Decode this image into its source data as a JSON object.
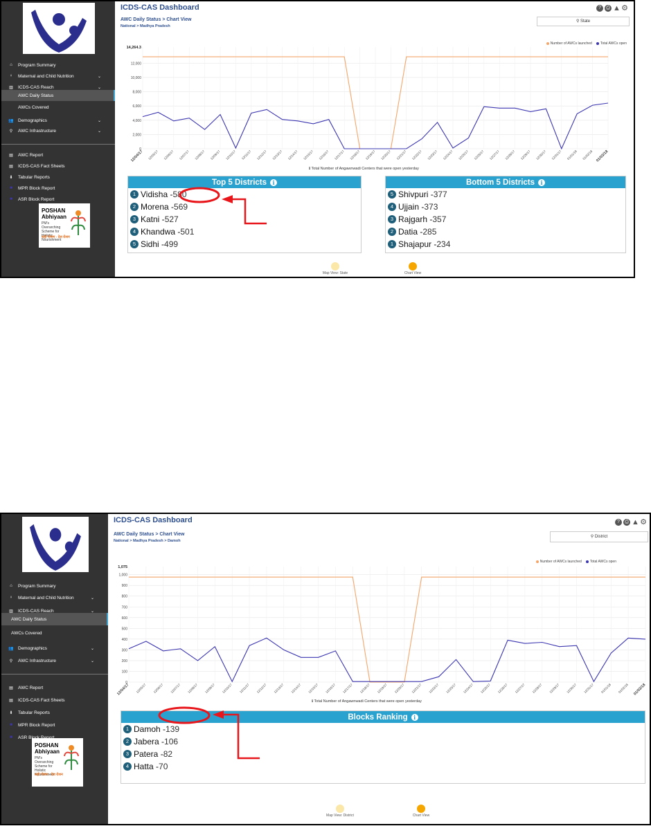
{
  "screenshot_1": {
    "sidebar": {
      "items": [
        {
          "icon": "home-icon",
          "label": "Program Summary"
        },
        {
          "icon": "mother-child-icon",
          "label": "Maternal and Child Nutrition",
          "chevron": true
        },
        {
          "icon": "bar-chart-icon",
          "label": "ICDS-CAS Reach",
          "chevron": true
        },
        {
          "label": "AWC Daily Status",
          "active": true,
          "sub": true
        },
        {
          "label": "AWCs Covered",
          "sub": true
        },
        {
          "icon": "users-icon",
          "label": "Demographics",
          "chevron": true
        },
        {
          "icon": "map-pin-icon",
          "label": "AWC Infrastructure",
          "chevron": true
        }
      ],
      "reports": [
        {
          "icon": "file-icon",
          "label": "AWC Report"
        },
        {
          "icon": "file-icon",
          "label": "ICDS-CAS Fact Sheets"
        },
        {
          "icon": "download-icon",
          "label": "Tabular Reports"
        },
        {
          "icon": "square-icon",
          "label": "MPR Block Report"
        },
        {
          "icon": "square-icon",
          "label": "ASR Block Report"
        }
      ],
      "poshan": {
        "line1": "POSHAN",
        "line2": "Abhiyaan",
        "tagline": "PM's Overarching Scheme for Holistic Nourishment",
        "hindi": "सही पोषण - देश रोशन"
      }
    },
    "header": {
      "title": "ICDS-CAS Dashboard",
      "subtitle_part1": "AWC Daily Status",
      "subtitle_sep": ">",
      "subtitle_part2": "Chart View",
      "breadcrumb": "National > Madhya Pradesh",
      "location_button": "State"
    },
    "chart_legend": {
      "launched": "Number of AWCs launched",
      "open": "Total AWCs open",
      "launched_color": "#f4a56a",
      "open_color": "#3b35b0"
    },
    "chart_note": "Total Number of Angawnwadi Centers that were open yesterday",
    "chart_data": {
      "type": "line",
      "y_top_label": "14,264.3",
      "yticks": [
        "2,000",
        "4,000",
        "6,000",
        "8,000",
        "10,000",
        "12,000"
      ],
      "ylim": [
        0,
        14264.3
      ],
      "x": [
        "12/04/17",
        "12/05/17",
        "12/06/17",
        "12/07/17",
        "12/08/17",
        "12/09/17",
        "12/10/17",
        "12/11/17",
        "12/12/17",
        "12/13/17",
        "12/14/17",
        "12/15/17",
        "12/16/17",
        "12/17/17",
        "12/18/17",
        "12/19/17",
        "12/20/17",
        "12/21/17",
        "12/22/17",
        "12/23/17",
        "12/24/17",
        "12/25/17",
        "12/26/17",
        "12/27/17",
        "12/28/17",
        "12/29/17",
        "12/30/17",
        "12/31/17",
        "01/01/18",
        "01/02/18",
        "01/03/18"
      ],
      "series": [
        {
          "name": "Number of AWCs launched",
          "values": [
            12900,
            12900,
            12900,
            12900,
            12900,
            12900,
            12900,
            12900,
            12900,
            12900,
            12900,
            12900,
            12900,
            12900,
            0,
            0,
            0,
            12900,
            12900,
            12900,
            12900,
            12900,
            12900,
            12900,
            12900,
            12900,
            12900,
            12900,
            12900,
            12900,
            12900
          ]
        },
        {
          "name": "Total AWCs open",
          "values": [
            4500,
            5100,
            3900,
            4300,
            2700,
            4800,
            100,
            5000,
            5500,
            4100,
            3900,
            3500,
            4100,
            0,
            0,
            0,
            0,
            0,
            1400,
            3700,
            100,
            1500,
            5900,
            5700,
            5700,
            5200,
            5600,
            0,
            4900,
            6100,
            6400
          ]
        }
      ]
    },
    "top_panel": {
      "title": "Top 5 Districts",
      "rows": [
        {
          "rank": "1",
          "name": "Vidisha",
          "value": "580"
        },
        {
          "rank": "2",
          "name": "Morena",
          "value": "569"
        },
        {
          "rank": "3",
          "name": "Katni",
          "value": "527"
        },
        {
          "rank": "4",
          "name": "Khandwa",
          "value": "501"
        },
        {
          "rank": "5",
          "name": "Sidhi",
          "value": "499"
        }
      ]
    },
    "bottom_panel": {
      "title": "Bottom 5 Districts",
      "rows": [
        {
          "rank": "5",
          "name": "Shivpuri",
          "value": "377"
        },
        {
          "rank": "4",
          "name": "Ujjain",
          "value": "373"
        },
        {
          "rank": "3",
          "name": "Rajgarh",
          "value": "357"
        },
        {
          "rank": "2",
          "name": "Datia",
          "value": "285"
        },
        {
          "rank": "1",
          "name": "Shajapur",
          "value": "234"
        }
      ]
    },
    "view_toggle": {
      "map": "Map View: State",
      "chart": "Chart View"
    }
  },
  "screenshot_2": {
    "header": {
      "title": "ICDS-CAS Dashboard",
      "subtitle_part1": "AWC Daily Status",
      "subtitle_sep": ">",
      "subtitle_part2": "Chart View",
      "breadcrumb": "National > Madhya Pradesh > Damoh",
      "location_button": "District"
    },
    "chart_data": {
      "type": "line",
      "y_top_label": "1,075",
      "yticks": [
        "100",
        "200",
        "300",
        "400",
        "500",
        "600",
        "700",
        "800",
        "900",
        "1,000"
      ],
      "ylim": [
        0,
        1075
      ],
      "x": [
        "12/04/17",
        "12/05/17",
        "12/06/17",
        "12/07/17",
        "12/08/17",
        "12/09/17",
        "12/10/17",
        "12/11/17",
        "12/12/17",
        "12/13/17",
        "12/14/17",
        "12/15/17",
        "12/16/17",
        "12/17/17",
        "12/18/17",
        "12/19/17",
        "12/20/17",
        "12/21/17",
        "12/22/17",
        "12/23/17",
        "12/24/17",
        "12/25/17",
        "12/26/17",
        "12/27/17",
        "12/28/17",
        "12/29/17",
        "12/30/17",
        "12/31/17",
        "01/01/18",
        "01/02/18",
        "01/03/18"
      ],
      "series": [
        {
          "name": "Number of AWCs launched",
          "values": [
            977,
            977,
            977,
            977,
            977,
            977,
            977,
            977,
            977,
            977,
            977,
            977,
            977,
            977,
            0,
            0,
            0,
            977,
            977,
            977,
            977,
            977,
            977,
            977,
            977,
            977,
            977,
            977,
            977,
            977,
            977
          ]
        },
        {
          "name": "Total AWCs open",
          "values": [
            310,
            380,
            290,
            310,
            200,
            330,
            5,
            340,
            410,
            300,
            230,
            230,
            290,
            5,
            5,
            5,
            5,
            5,
            50,
            210,
            5,
            10,
            390,
            360,
            370,
            330,
            340,
            5,
            270,
            410,
            400
          ]
        }
      ]
    },
    "blocks_panel": {
      "title": "Blocks Ranking",
      "rows": [
        {
          "rank": "1",
          "name": "Damoh",
          "value": "139"
        },
        {
          "rank": "2",
          "name": "Jabera",
          "value": "106"
        },
        {
          "rank": "3",
          "name": "Patera",
          "value": "82"
        },
        {
          "rank": "4",
          "name": "Hatta",
          "value": "70"
        }
      ]
    },
    "view_toggle": {
      "map": "Map View: District",
      "chart": "Chart View"
    }
  }
}
